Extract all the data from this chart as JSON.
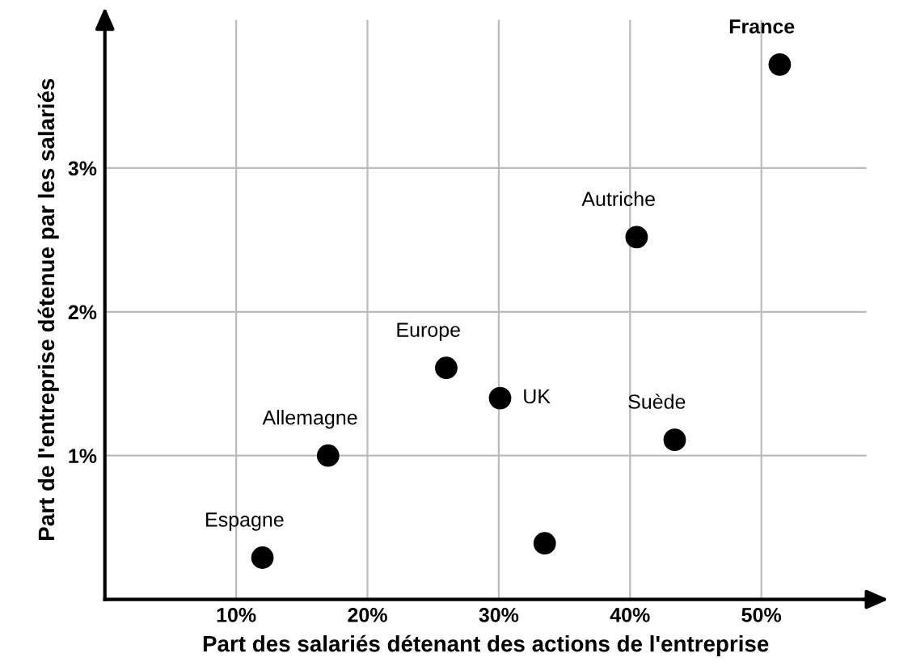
{
  "chart_data": {
    "type": "scatter",
    "xlabel": "Part des salariés détenant des actions de l'entreprise",
    "ylabel": "Part de l'entreprise détenue par les salariés",
    "x": [
      51.4,
      40.5,
      26.0,
      30.1,
      43.4,
      17.0,
      12.0,
      33.5
    ],
    "series": [
      {
        "color": "#000000",
        "values": [
          3.72,
          2.52,
          1.61,
          1.4,
          1.11,
          1.0,
          0.29,
          0.39
        ]
      }
    ],
    "annotations": [
      {
        "text": "France",
        "x": 51.4,
        "y": 3.72
      },
      {
        "text": "Autriche",
        "x": 40.5,
        "y": 2.52
      },
      {
        "text": "Europe",
        "x": 26.0,
        "y": 1.61
      },
      {
        "text": "UK",
        "x": 30.1,
        "y": 1.4
      },
      {
        "text": "Suède",
        "x": 43.4,
        "y": 1.11
      },
      {
        "text": "Allemagne",
        "x": 17.0,
        "y": 1.0
      },
      {
        "text": "Espagne",
        "x": 12.0,
        "y": 0.29
      }
    ],
    "xlim": [
      0,
      58
    ],
    "ylim": [
      0,
      4.03
    ],
    "xticks": [
      {
        "value": 10,
        "label": "10%"
      },
      {
        "value": 20,
        "label": "20%"
      },
      {
        "value": 30,
        "label": "30%"
      },
      {
        "value": 40,
        "label": "40%"
      },
      {
        "value": 50,
        "label": "50%"
      }
    ],
    "yticks": [
      {
        "value": 1,
        "label": "1%"
      },
      {
        "value": 2,
        "label": "2%"
      },
      {
        "value": 3,
        "label": "3%"
      }
    ],
    "grid": true,
    "marker": "circle"
  }
}
